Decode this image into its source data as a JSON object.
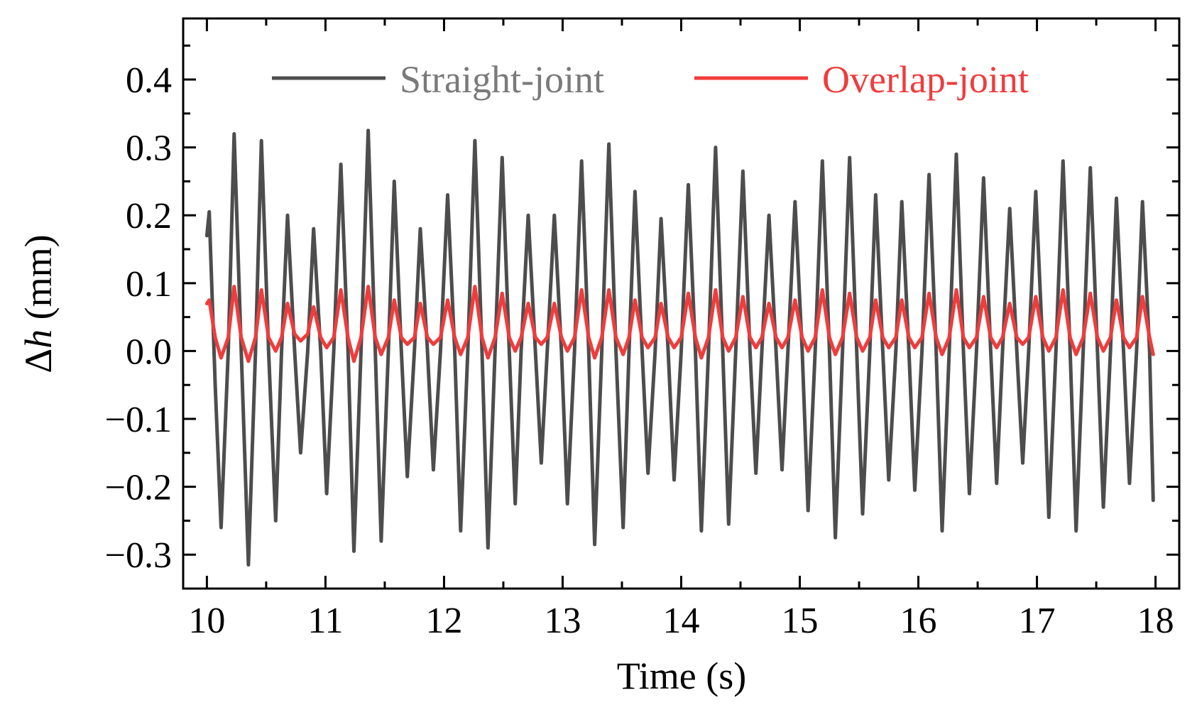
{
  "chart_data": {
    "type": "line",
    "xlabel": "Time (s)",
    "ylabel_symbol": "Δ",
    "ylabel_var": "h",
    "ylabel_unit": " (mm)",
    "xlim": [
      9.8,
      18.2
    ],
    "ylim": [
      -0.35,
      0.49
    ],
    "xticks": [
      10,
      11,
      12,
      13,
      14,
      15,
      16,
      17,
      18
    ],
    "xtick_labels": [
      "10",
      "11",
      "12",
      "13",
      "14",
      "15",
      "16",
      "17",
      "18"
    ],
    "yticks": [
      -0.3,
      -0.2,
      -0.1,
      0.0,
      0.1,
      0.2,
      0.3,
      0.4
    ],
    "ytick_labels": [
      "−0.3",
      "−0.2",
      "−0.1",
      "0.0",
      "0.1",
      "0.2",
      "0.3",
      "0.4"
    ],
    "legend_position": "top",
    "series": [
      {
        "name": "Straight-joint",
        "color": "#4d4d4d",
        "points": [
          [
            10.0,
            0.17
          ],
          [
            10.02,
            0.205
          ],
          [
            10.07,
            -0.05
          ],
          [
            10.12,
            -0.26
          ],
          [
            10.18,
            0.0
          ],
          [
            10.23,
            0.32
          ],
          [
            10.29,
            0.0
          ],
          [
            10.35,
            -0.315
          ],
          [
            10.41,
            0.0
          ],
          [
            10.46,
            0.31
          ],
          [
            10.52,
            0.0
          ],
          [
            10.58,
            -0.25
          ],
          [
            10.63,
            0.0
          ],
          [
            10.68,
            0.2
          ],
          [
            10.74,
            0.0
          ],
          [
            10.79,
            -0.15
          ],
          [
            10.85,
            0.0
          ],
          [
            10.9,
            0.18
          ],
          [
            10.96,
            0.0
          ],
          [
            11.01,
            -0.21
          ],
          [
            11.07,
            0.0
          ],
          [
            11.13,
            0.275
          ],
          [
            11.19,
            0.0
          ],
          [
            11.24,
            -0.295
          ],
          [
            11.3,
            0.0
          ],
          [
            11.36,
            0.325
          ],
          [
            11.42,
            0.0
          ],
          [
            11.47,
            -0.28
          ],
          [
            11.53,
            0.0
          ],
          [
            11.58,
            0.25
          ],
          [
            11.64,
            0.0
          ],
          [
            11.69,
            -0.185
          ],
          [
            11.75,
            0.0
          ],
          [
            11.8,
            0.18
          ],
          [
            11.86,
            0.0
          ],
          [
            11.91,
            -0.175
          ],
          [
            11.97,
            0.0
          ],
          [
            12.03,
            0.23
          ],
          [
            12.09,
            0.0
          ],
          [
            12.14,
            -0.265
          ],
          [
            12.2,
            0.0
          ],
          [
            12.26,
            0.31
          ],
          [
            12.32,
            0.0
          ],
          [
            12.37,
            -0.29
          ],
          [
            12.43,
            0.0
          ],
          [
            12.49,
            0.285
          ],
          [
            12.55,
            0.0
          ],
          [
            12.6,
            -0.225
          ],
          [
            12.65,
            0.0
          ],
          [
            12.71,
            0.2
          ],
          [
            12.77,
            0.0
          ],
          [
            12.82,
            -0.165
          ],
          [
            12.87,
            0.0
          ],
          [
            12.93,
            0.2
          ],
          [
            12.99,
            0.0
          ],
          [
            13.04,
            -0.225
          ],
          [
            13.1,
            0.0
          ],
          [
            13.16,
            0.28
          ],
          [
            13.22,
            0.0
          ],
          [
            13.27,
            -0.285
          ],
          [
            13.33,
            0.0
          ],
          [
            13.39,
            0.305
          ],
          [
            13.45,
            0.0
          ],
          [
            13.51,
            -0.26
          ],
          [
            13.56,
            0.0
          ],
          [
            13.61,
            0.235
          ],
          [
            13.67,
            0.0
          ],
          [
            13.72,
            -0.18
          ],
          [
            13.78,
            0.0
          ],
          [
            13.83,
            0.195
          ],
          [
            13.89,
            0.0
          ],
          [
            13.94,
            -0.19
          ],
          [
            14.0,
            0.0
          ],
          [
            14.06,
            0.245
          ],
          [
            14.12,
            0.0
          ],
          [
            14.17,
            -0.265
          ],
          [
            14.23,
            0.0
          ],
          [
            14.29,
            0.3
          ],
          [
            14.35,
            0.0
          ],
          [
            14.4,
            -0.255
          ],
          [
            14.46,
            0.0
          ],
          [
            14.52,
            0.265
          ],
          [
            14.58,
            0.0
          ],
          [
            14.63,
            -0.18
          ],
          [
            14.68,
            0.0
          ],
          [
            14.74,
            0.2
          ],
          [
            14.8,
            0.0
          ],
          [
            14.85,
            -0.175
          ],
          [
            14.9,
            0.0
          ],
          [
            14.96,
            0.22
          ],
          [
            15.02,
            0.0
          ],
          [
            15.07,
            -0.235
          ],
          [
            15.13,
            0.0
          ],
          [
            15.19,
            0.28
          ],
          [
            15.25,
            0.0
          ],
          [
            15.3,
            -0.275
          ],
          [
            15.36,
            0.0
          ],
          [
            15.42,
            0.285
          ],
          [
            15.48,
            0.0
          ],
          [
            15.53,
            -0.24
          ],
          [
            15.59,
            0.0
          ],
          [
            15.64,
            0.23
          ],
          [
            15.7,
            0.0
          ],
          [
            15.75,
            -0.19
          ],
          [
            15.81,
            0.0
          ],
          [
            15.86,
            0.22
          ],
          [
            15.92,
            0.0
          ],
          [
            15.97,
            -0.205
          ],
          [
            16.03,
            0.0
          ],
          [
            16.09,
            0.26
          ],
          [
            16.15,
            0.0
          ],
          [
            16.2,
            -0.265
          ],
          [
            16.26,
            0.0
          ],
          [
            16.32,
            0.29
          ],
          [
            16.38,
            0.0
          ],
          [
            16.43,
            -0.21
          ],
          [
            16.49,
            0.0
          ],
          [
            16.55,
            0.255
          ],
          [
            16.61,
            0.0
          ],
          [
            16.66,
            -0.195
          ],
          [
            16.71,
            0.0
          ],
          [
            16.77,
            0.21
          ],
          [
            16.83,
            0.0
          ],
          [
            16.88,
            -0.165
          ],
          [
            16.93,
            0.0
          ],
          [
            16.99,
            0.235
          ],
          [
            17.05,
            0.0
          ],
          [
            17.1,
            -0.245
          ],
          [
            17.16,
            0.0
          ],
          [
            17.22,
            0.28
          ],
          [
            17.28,
            0.0
          ],
          [
            17.33,
            -0.265
          ],
          [
            17.39,
            0.0
          ],
          [
            17.45,
            0.27
          ],
          [
            17.51,
            0.0
          ],
          [
            17.56,
            -0.23
          ],
          [
            17.62,
            0.0
          ],
          [
            17.67,
            0.225
          ],
          [
            17.73,
            0.0
          ],
          [
            17.78,
            -0.195
          ],
          [
            17.84,
            0.0
          ],
          [
            17.89,
            0.22
          ],
          [
            17.95,
            0.0
          ],
          [
            17.98,
            -0.22
          ]
        ]
      },
      {
        "name": "Overlap-joint",
        "color": "#f03c3c",
        "points": [
          [
            10.0,
            0.07
          ],
          [
            10.02,
            0.075
          ],
          [
            10.07,
            0.02
          ],
          [
            10.12,
            -0.01
          ],
          [
            10.18,
            0.02
          ],
          [
            10.23,
            0.095
          ],
          [
            10.29,
            0.02
          ],
          [
            10.35,
            -0.015
          ],
          [
            10.41,
            0.02
          ],
          [
            10.46,
            0.09
          ],
          [
            10.52,
            0.02
          ],
          [
            10.58,
            0.0
          ],
          [
            10.63,
            0.02
          ],
          [
            10.68,
            0.07
          ],
          [
            10.74,
            0.025
          ],
          [
            10.79,
            0.015
          ],
          [
            10.85,
            0.025
          ],
          [
            10.9,
            0.065
          ],
          [
            10.96,
            0.02
          ],
          [
            11.01,
            0.005
          ],
          [
            11.07,
            0.02
          ],
          [
            11.13,
            0.09
          ],
          [
            11.19,
            0.02
          ],
          [
            11.24,
            -0.015
          ],
          [
            11.3,
            0.02
          ],
          [
            11.36,
            0.095
          ],
          [
            11.42,
            0.02
          ],
          [
            11.47,
            -0.005
          ],
          [
            11.53,
            0.02
          ],
          [
            11.58,
            0.075
          ],
          [
            11.64,
            0.02
          ],
          [
            11.69,
            0.01
          ],
          [
            11.75,
            0.02
          ],
          [
            11.8,
            0.07
          ],
          [
            11.86,
            0.02
          ],
          [
            11.91,
            0.01
          ],
          [
            11.97,
            0.02
          ],
          [
            12.03,
            0.075
          ],
          [
            12.09,
            0.02
          ],
          [
            12.14,
            -0.005
          ],
          [
            12.2,
            0.02
          ],
          [
            12.26,
            0.095
          ],
          [
            12.32,
            0.02
          ],
          [
            12.37,
            -0.01
          ],
          [
            12.43,
            0.02
          ],
          [
            12.49,
            0.085
          ],
          [
            12.55,
            0.02
          ],
          [
            12.6,
            0.0
          ],
          [
            12.65,
            0.02
          ],
          [
            12.71,
            0.07
          ],
          [
            12.77,
            0.02
          ],
          [
            12.82,
            0.01
          ],
          [
            12.87,
            0.02
          ],
          [
            12.93,
            0.07
          ],
          [
            12.99,
            0.02
          ],
          [
            13.04,
            0.0
          ],
          [
            13.1,
            0.02
          ],
          [
            13.16,
            0.09
          ],
          [
            13.22,
            0.02
          ],
          [
            13.27,
            -0.01
          ],
          [
            13.33,
            0.02
          ],
          [
            13.39,
            0.09
          ],
          [
            13.45,
            0.02
          ],
          [
            13.51,
            -0.005
          ],
          [
            13.56,
            0.02
          ],
          [
            13.61,
            0.075
          ],
          [
            13.67,
            0.02
          ],
          [
            13.72,
            0.005
          ],
          [
            13.78,
            0.02
          ],
          [
            13.83,
            0.07
          ],
          [
            13.89,
            0.02
          ],
          [
            13.94,
            0.005
          ],
          [
            14.0,
            0.02
          ],
          [
            14.06,
            0.085
          ],
          [
            14.12,
            0.02
          ],
          [
            14.17,
            -0.01
          ],
          [
            14.23,
            0.02
          ],
          [
            14.29,
            0.09
          ],
          [
            14.35,
            0.02
          ],
          [
            14.4,
            0.0
          ],
          [
            14.46,
            0.02
          ],
          [
            14.52,
            0.08
          ],
          [
            14.58,
            0.02
          ],
          [
            14.63,
            0.005
          ],
          [
            14.68,
            0.02
          ],
          [
            14.74,
            0.07
          ],
          [
            14.8,
            0.02
          ],
          [
            14.85,
            0.005
          ],
          [
            14.9,
            0.02
          ],
          [
            14.96,
            0.075
          ],
          [
            15.02,
            0.02
          ],
          [
            15.07,
            0.0
          ],
          [
            15.13,
            0.02
          ],
          [
            15.19,
            0.09
          ],
          [
            15.25,
            0.02
          ],
          [
            15.3,
            -0.005
          ],
          [
            15.36,
            0.02
          ],
          [
            15.42,
            0.085
          ],
          [
            15.48,
            0.02
          ],
          [
            15.53,
            0.0
          ],
          [
            15.59,
            0.02
          ],
          [
            15.64,
            0.075
          ],
          [
            15.7,
            0.02
          ],
          [
            15.75,
            0.005
          ],
          [
            15.81,
            0.02
          ],
          [
            15.86,
            0.075
          ],
          [
            15.92,
            0.02
          ],
          [
            15.97,
            0.005
          ],
          [
            16.03,
            0.02
          ],
          [
            16.09,
            0.085
          ],
          [
            16.15,
            0.02
          ],
          [
            16.2,
            -0.005
          ],
          [
            16.26,
            0.02
          ],
          [
            16.32,
            0.09
          ],
          [
            16.38,
            0.02
          ],
          [
            16.43,
            0.005
          ],
          [
            16.49,
            0.02
          ],
          [
            16.55,
            0.08
          ],
          [
            16.61,
            0.02
          ],
          [
            16.66,
            0.005
          ],
          [
            16.71,
            0.02
          ],
          [
            16.77,
            0.07
          ],
          [
            16.83,
            0.02
          ],
          [
            16.88,
            0.01
          ],
          [
            16.93,
            0.02
          ],
          [
            16.99,
            0.08
          ],
          [
            17.05,
            0.02
          ],
          [
            17.1,
            0.0
          ],
          [
            17.16,
            0.02
          ],
          [
            17.22,
            0.09
          ],
          [
            17.28,
            0.02
          ],
          [
            17.33,
            -0.005
          ],
          [
            17.39,
            0.02
          ],
          [
            17.45,
            0.085
          ],
          [
            17.51,
            0.02
          ],
          [
            17.56,
            0.0
          ],
          [
            17.62,
            0.02
          ],
          [
            17.67,
            0.075
          ],
          [
            17.73,
            0.02
          ],
          [
            17.78,
            0.005
          ],
          [
            17.84,
            0.02
          ],
          [
            17.89,
            0.08
          ],
          [
            17.95,
            0.02
          ],
          [
            17.98,
            -0.005
          ]
        ]
      }
    ]
  }
}
